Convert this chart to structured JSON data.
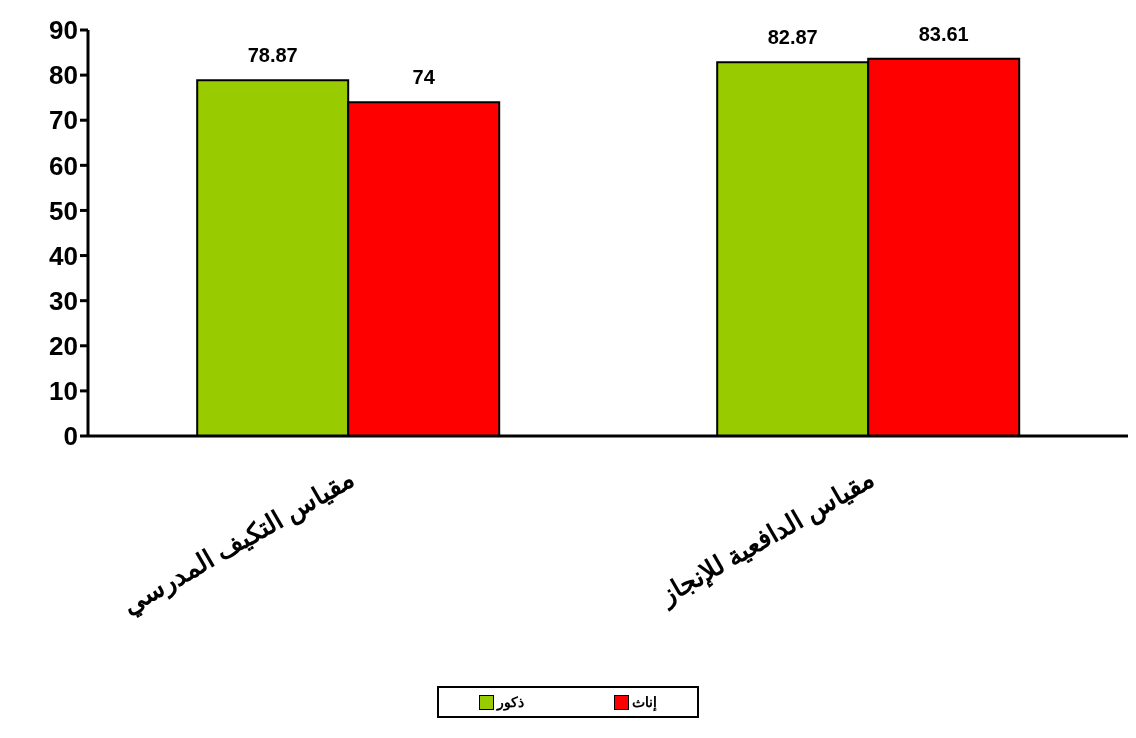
{
  "chart_data": {
    "type": "bar",
    "categories": [
      "مقياس التكيف المدرسي",
      "مقياس الدافعية للإنجاز"
    ],
    "series": [
      {
        "name": "ذكور",
        "color": "#99cc00",
        "values": [
          78.87,
          82.87
        ]
      },
      {
        "name": "إناث",
        "color": "#ff0000",
        "values": [
          74,
          83.61
        ]
      }
    ],
    "ylim": [
      0,
      90
    ],
    "yticks": [
      0,
      10,
      20,
      30,
      40,
      50,
      60,
      70,
      80,
      90
    ],
    "data_labels": true,
    "grid": false,
    "legend": "bottom"
  }
}
